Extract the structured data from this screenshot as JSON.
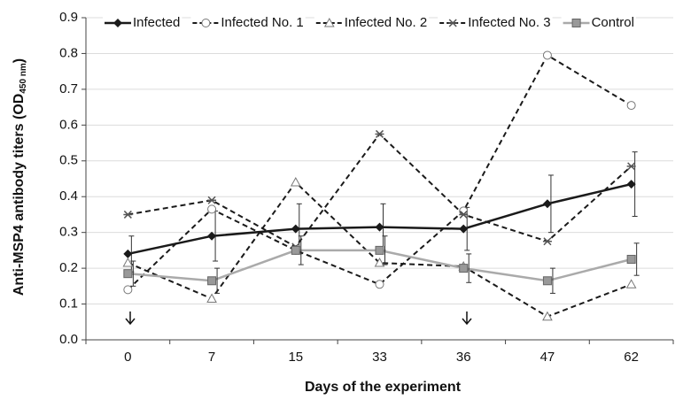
{
  "chart_data": {
    "type": "line",
    "xlabel": "Days of the experiment",
    "ylabel": "Anti-MSP4 antibody titers (OD",
    "ylabel_sub": "450 nm",
    "ylabel_end": ")",
    "categories": [
      "0",
      "7",
      "15",
      "33",
      "36",
      "47",
      "62"
    ],
    "ylim": [
      0,
      0.9
    ],
    "yticks": [
      {
        "value": 0,
        "label": "0.0"
      },
      0.1,
      0.2,
      0.3,
      0.4,
      0.5,
      0.6,
      0.7,
      0.8,
      0.9
    ],
    "grid": true,
    "legend": "top",
    "series": [
      {
        "name": "Infected",
        "color": "#1a1a1a",
        "marker": "diamond",
        "dashed": false,
        "values": [
          0.24,
          0.29,
          0.31,
          0.315,
          0.31,
          0.38,
          0.435
        ],
        "errors": [
          0.05,
          0.07,
          0.07,
          0.065,
          0.06,
          0.08,
          0.09
        ]
      },
      {
        "name": "Infected No. 1",
        "color": "#1a1a1a",
        "marker": "circle",
        "dashed": true,
        "values": [
          0.14,
          0.365,
          0.25,
          0.155,
          0.36,
          0.795,
          0.655
        ]
      },
      {
        "name": "Infected No. 2",
        "color": "#1a1a1a",
        "marker": "triangle",
        "dashed": true,
        "values": [
          0.215,
          0.115,
          0.44,
          0.215,
          0.205,
          0.065,
          0.155
        ]
      },
      {
        "name": "Infected No. 3",
        "color": "#1a1a1a",
        "marker": "star",
        "dashed": true,
        "values": [
          0.35,
          0.39,
          0.26,
          0.575,
          0.35,
          0.275,
          0.485
        ]
      },
      {
        "name": "Control",
        "color": "#aaaaaa",
        "marker": "square",
        "dashed": false,
        "values": [
          0.185,
          0.165,
          0.25,
          0.25,
          0.2,
          0.165,
          0.225
        ],
        "errors": [
          0.035,
          0.035,
          0.04,
          0.04,
          0.04,
          0.035,
          0.045
        ]
      }
    ]
  }
}
